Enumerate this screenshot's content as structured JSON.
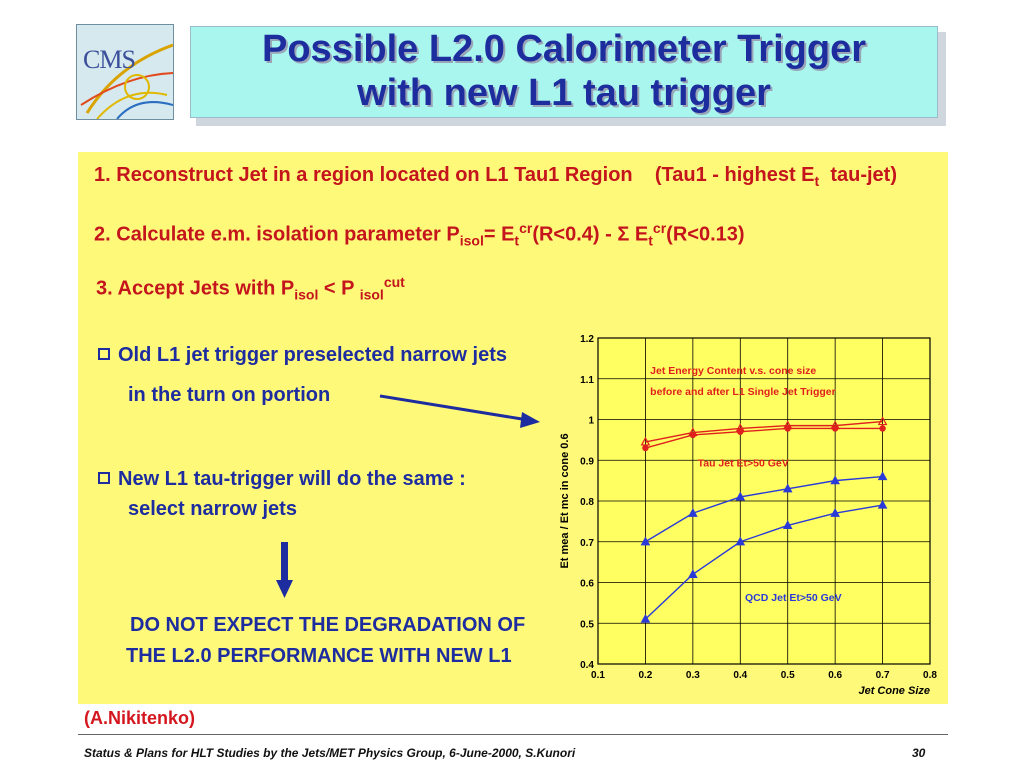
{
  "header": {
    "logo_text": "CMS",
    "title_line1": "Possible L2.0 Calorimeter Trigger",
    "title_line2": "with new L1 tau trigger"
  },
  "steps": [
    {
      "number": "1.",
      "text": "Reconstruct Jet in a region located on L1 Tau1 Region",
      "note_open": "(Tau1 - highest E",
      "note_sub": "t",
      "note_close": "tau-jet)"
    },
    {
      "number": "2.",
      "text": "Calculate e.m.  isolation parameter P",
      "sub1": "isol",
      "eq": "= E",
      "sub2": "t",
      "sup2": "cr",
      "mid": "(R<0.4)  - Σ E",
      "sub3": "t",
      "sup3": "cr",
      "end": "(R<0.13)"
    },
    {
      "number": "3.",
      "text": "Accept Jets with P",
      "sub1": "isol",
      "mid": " < P ",
      "sub2": "isol",
      "sup2": "cut"
    }
  ],
  "bullets": [
    {
      "line1": "Old L1 jet trigger  preselected  narrow jets",
      "line2": "in the turn on portion"
    },
    {
      "line1": "New L1 tau-trigger will do the same :",
      "line2": "select narrow jets"
    }
  ],
  "conclusion": {
    "line1": "DO NOT EXPECT THE DEGRADATION OF",
    "line2": "THE L2.0 PERFORMANCE WITH NEW  L1"
  },
  "credit": "(A.Nikitenko)",
  "footer": {
    "left": "Status & Plans for HLT Studies by the Jets/MET Physics Group, 6-June-2000, S.Kunori",
    "page": "30"
  },
  "colors": {
    "title": "#1d2d9e",
    "panel_bg": "#fff97a",
    "step_text": "#c4141c",
    "bullet_text": "#1d2da0",
    "series_red": "#e0201c",
    "series_blue": "#2a3ad8"
  },
  "chart_data": {
    "type": "line",
    "xlabel": "Jet Cone Size",
    "ylabel": "Et mea / Et mc in cone 0.6",
    "xlim": [
      0.1,
      0.8
    ],
    "ylim": [
      0.4,
      1.2
    ],
    "x_ticks": [
      "0.1",
      "0.2",
      "0.3",
      "0.4",
      "0.5",
      "0.6",
      "0.7",
      "0.8"
    ],
    "y_ticks": [
      "0.4",
      "0.5",
      "0.6",
      "0.7",
      "0.8",
      "0.9",
      "1",
      "1.1",
      "1.2"
    ],
    "grid": true,
    "annotations": [
      {
        "text": "Jet Energy Content v.s. cone size",
        "color": "#e0201c"
      },
      {
        "text": "before and after L1 Single Jet Trigger",
        "color": "#e0201c"
      },
      {
        "text": "Tau Jet Et>50 GeV",
        "color": "#e0201c"
      },
      {
        "text": "QCD Jet Et>50 GeV",
        "color": "#2a3ad8"
      }
    ],
    "series": [
      {
        "color": "#e0201c",
        "marker": "triangle",
        "x": [
          0.2,
          0.3,
          0.4,
          0.5,
          0.6,
          0.7
        ],
        "y": [
          0.945,
          0.968,
          0.978,
          0.985,
          0.985,
          0.995
        ]
      },
      {
        "color": "#e0201c",
        "marker": "circle",
        "x": [
          0.2,
          0.3,
          0.4,
          0.5,
          0.6,
          0.7
        ],
        "y": [
          0.93,
          0.962,
          0.97,
          0.978,
          0.978,
          0.978
        ]
      },
      {
        "color": "#2a3ad8",
        "marker": "triangle",
        "x": [
          0.2,
          0.3,
          0.4,
          0.5,
          0.6,
          0.7
        ],
        "y": [
          0.7,
          0.77,
          0.81,
          0.83,
          0.85,
          0.86
        ]
      },
      {
        "color": "#2a3ad8",
        "marker": "triangle",
        "x": [
          0.2,
          0.3,
          0.4,
          0.5,
          0.6,
          0.7
        ],
        "y": [
          0.51,
          0.62,
          0.7,
          0.74,
          0.77,
          0.79
        ]
      }
    ]
  }
}
